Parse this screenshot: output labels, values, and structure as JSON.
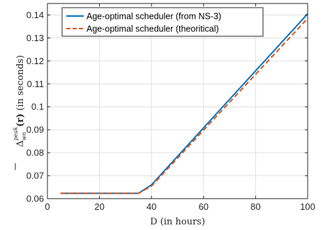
{
  "chart_data": {
    "type": "line",
    "xlabel": "D (in hours)",
    "ylabel": {
      "main": "Δ",
      "bold_arg": "(r)",
      "sub": "wn",
      "sup": "peak",
      "unit": "(in seconds)"
    },
    "xlim": [
      0,
      100
    ],
    "ylim": [
      0.06,
      0.145
    ],
    "x_ticks": [
      0,
      20,
      40,
      60,
      80,
      100
    ],
    "y_ticks": [
      0.06,
      0.07,
      0.08,
      0.09,
      0.1,
      0.11,
      0.12,
      0.13,
      0.14
    ],
    "x_tick_labels": [
      "0",
      "20",
      "40",
      "60",
      "80",
      "100"
    ],
    "y_tick_labels": [
      "0.06",
      "0.07",
      "0.08",
      "0.09",
      "0.1",
      "0.11",
      "0.12",
      "0.13",
      "0.14"
    ],
    "grid": true,
    "legend_position": "top-left",
    "series": [
      {
        "name": "Age-optimal scheduler (from NS-3)",
        "color": "#0072BD",
        "dash": "solid",
        "x": [
          5,
          35,
          40,
          100
        ],
        "y": [
          0.0623,
          0.0623,
          0.066,
          0.1405
        ]
      },
      {
        "name": "Age-optimal scheduler (theoritical)",
        "color": "#D95319",
        "dash": "dashed",
        "x": [
          5,
          35,
          40,
          100
        ],
        "y": [
          0.0623,
          0.0623,
          0.0655,
          0.1385
        ]
      }
    ]
  }
}
